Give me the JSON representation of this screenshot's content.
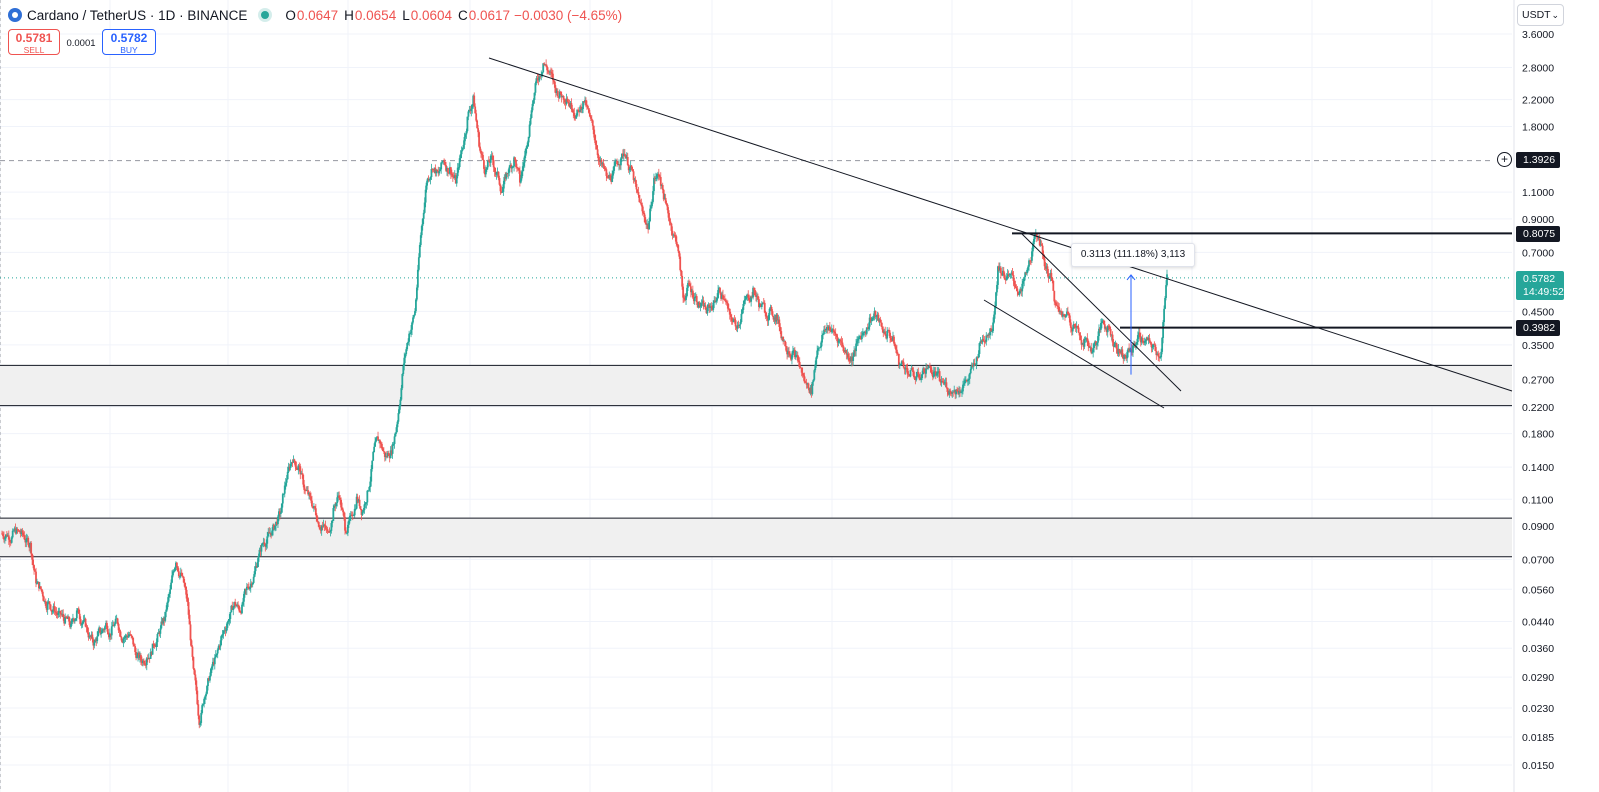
{
  "header": {
    "symbol_title": "Cardano / TetherUS · 1D · BINANCE",
    "open_label": "O",
    "open": "0.0647",
    "high_label": "H",
    "high": "0.0654",
    "low_label": "L",
    "low": "0.0604",
    "close_label": "C",
    "close": "0.0617",
    "change": "−0.0030 (−4.65%)"
  },
  "trade": {
    "sell_price": "0.5781",
    "sell_label": "SELL",
    "spread": "0.0001",
    "buy_price": "0.5782",
    "buy_label": "BUY"
  },
  "currency": {
    "label": "USDT",
    "chevron": "⌄"
  },
  "colors": {
    "up": "#26a69a",
    "down": "#ef5350",
    "line": "#131722",
    "zone_fill": "#f0f0f0",
    "measure": "#2962ff",
    "accent_buy": "#2962ff"
  },
  "icons": {
    "plus": "plus-circle-icon",
    "logo": "cardano-logo-icon"
  },
  "price_labels": {
    "crosshair": "1.3926",
    "resistance": "0.8075",
    "support": "0.3982",
    "last_price": "0.5782",
    "countdown": "14:49:52"
  },
  "measure": {
    "text": "0.3113 (111.18%) 3,113"
  },
  "chart_data": {
    "type": "candlestick",
    "title": "Cardano / TetherUS · 1D · BINANCE",
    "y_scale": "log",
    "ylim": [
      0.0145,
      3.75
    ],
    "y_ticks": [
      "3.6000",
      "2.8000",
      "2.2000",
      "1.8000",
      "1.1000",
      "0.9000",
      "0.7000",
      "0.4500",
      "0.3500",
      "0.2700",
      "0.2200",
      "0.1800",
      "0.1400",
      "0.1100",
      "0.0900",
      "0.0700",
      "0.0560",
      "0.0440",
      "0.0360",
      "0.0290",
      "0.0230",
      "0.0185",
      "0.0150"
    ],
    "grid": true,
    "approx_series_close": [
      0.085,
      0.084,
      0.086,
      0.083,
      0.078,
      0.06,
      0.055,
      0.05,
      0.048,
      0.046,
      0.044,
      0.042,
      0.047,
      0.044,
      0.04,
      0.037,
      0.041,
      0.043,
      0.041,
      0.044,
      0.039,
      0.04,
      0.035,
      0.033,
      0.034,
      0.036,
      0.04,
      0.045,
      0.055,
      0.07,
      0.062,
      0.05,
      0.03,
      0.021,
      0.026,
      0.03,
      0.034,
      0.04,
      0.045,
      0.05,
      0.048,
      0.055,
      0.06,
      0.07,
      0.08,
      0.085,
      0.09,
      0.1,
      0.13,
      0.15,
      0.14,
      0.12,
      0.11,
      0.1,
      0.09,
      0.085,
      0.1,
      0.115,
      0.09,
      0.095,
      0.11,
      0.1,
      0.12,
      0.16,
      0.17,
      0.15,
      0.16,
      0.2,
      0.3,
      0.38,
      0.45,
      0.8,
      1.2,
      1.35,
      1.25,
      1.4,
      1.3,
      1.2,
      1.5,
      1.9,
      2.2,
      1.6,
      1.3,
      1.4,
      1.25,
      1.1,
      1.3,
      1.4,
      1.2,
      1.5,
      2.1,
      2.6,
      2.9,
      2.7,
      2.4,
      2.3,
      2.25,
      2.1,
      2.0,
      2.2,
      1.9,
      1.6,
      1.35,
      1.2,
      1.25,
      1.4,
      1.5,
      1.3,
      1.1,
      0.95,
      0.85,
      1.2,
      1.25,
      1.0,
      0.85,
      0.75,
      0.5,
      0.55,
      0.5,
      0.47,
      0.45,
      0.47,
      0.52,
      0.5,
      0.43,
      0.41,
      0.44,
      0.5,
      0.52,
      0.48,
      0.46,
      0.45,
      0.43,
      0.37,
      0.34,
      0.33,
      0.3,
      0.26,
      0.25,
      0.34,
      0.38,
      0.4,
      0.38,
      0.36,
      0.33,
      0.32,
      0.36,
      0.39,
      0.42,
      0.44,
      0.4,
      0.38,
      0.36,
      0.31,
      0.3,
      0.28,
      0.27,
      0.28,
      0.3,
      0.28,
      0.27,
      0.26,
      0.25,
      0.25,
      0.26,
      0.27,
      0.3,
      0.36,
      0.38,
      0.4,
      0.62,
      0.6,
      0.58,
      0.55,
      0.52,
      0.6,
      0.72,
      0.8,
      0.65,
      0.58,
      0.46,
      0.43,
      0.45,
      0.4,
      0.38,
      0.36,
      0.34,
      0.36,
      0.42,
      0.4,
      0.35,
      0.33,
      0.32,
      0.34,
      0.37,
      0.36,
      0.35,
      0.34,
      0.33,
      0.58
    ],
    "annotations": [
      {
        "type": "descending_trendline",
        "from": [
          0,
          2.95
        ],
        "to": [
          1,
          0.85
        ],
        "extended_to": 0.26
      },
      {
        "type": "falling_wedge_upper",
        "from": 0.82,
        "to": 0.27
      },
      {
        "type": "falling_wedge_lower",
        "from": 0.52,
        "to": 0.215
      },
      {
        "type": "horizontal_level",
        "value": 0.8075
      },
      {
        "type": "horizontal_level",
        "value": 0.3982
      },
      {
        "type": "zone",
        "range": [
          0.222,
          0.3
        ]
      },
      {
        "type": "zone",
        "range": [
          0.0715,
          0.0955
        ]
      },
      {
        "type": "dashed_level",
        "value": 1.3926
      },
      {
        "type": "dotted_level",
        "value": 0.5782
      },
      {
        "type": "price_range",
        "from": 0.2799,
        "to": 0.5912,
        "label": "0.3113 (111.18%) 3,113"
      }
    ]
  }
}
